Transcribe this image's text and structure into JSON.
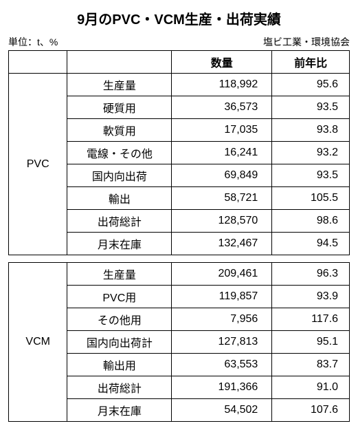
{
  "title": "9月のPVC・VCM生産・出荷実績",
  "unit_label": "単位：t、%",
  "source_label": "塩ビ工業・環境協会",
  "headers": {
    "quantity": "数量",
    "yoy": "前年比"
  },
  "sections": [
    {
      "category": "PVC",
      "rows": [
        {
          "label": "生産量",
          "quantity": "118,992",
          "yoy": "95.6"
        },
        {
          "label": "硬質用",
          "quantity": "36,573",
          "yoy": "93.5"
        },
        {
          "label": "軟質用",
          "quantity": "17,035",
          "yoy": "93.8"
        },
        {
          "label": "電線・その他",
          "quantity": "16,241",
          "yoy": "93.2"
        },
        {
          "label": "国内向出荷",
          "quantity": "69,849",
          "yoy": "93.5"
        },
        {
          "label": "輸出",
          "quantity": "58,721",
          "yoy": "105.5"
        },
        {
          "label": "出荷総計",
          "quantity": "128,570",
          "yoy": "98.6"
        },
        {
          "label": "月末在庫",
          "quantity": "132,467",
          "yoy": "94.5"
        }
      ]
    },
    {
      "category": "VCM",
      "rows": [
        {
          "label": "生産量",
          "quantity": "209,461",
          "yoy": "96.3"
        },
        {
          "label": "PVC用",
          "quantity": "119,857",
          "yoy": "93.9"
        },
        {
          "label": "その他用",
          "quantity": "7,956",
          "yoy": "117.6"
        },
        {
          "label": "国内向出荷計",
          "quantity": "127,813",
          "yoy": "95.1"
        },
        {
          "label": "輸出用",
          "quantity": "63,553",
          "yoy": "83.7"
        },
        {
          "label": "出荷総計",
          "quantity": "191,366",
          "yoy": "91.0"
        },
        {
          "label": "月末在庫",
          "quantity": "54,502",
          "yoy": "107.6"
        }
      ]
    }
  ]
}
